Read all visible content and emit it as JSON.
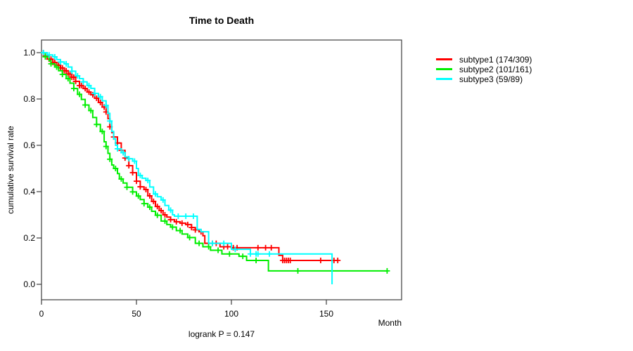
{
  "title": "Time to Death",
  "xlabel": "Month",
  "ylabel": "cumulative survival rate",
  "footer": "logrank P = 0.147",
  "colors": {
    "subtype1": "#ff0000",
    "subtype2": "#00ee00",
    "subtype3": "#00ffff",
    "axis": "#3c3c3c",
    "text": "#000000"
  },
  "legend": {
    "items": [
      {
        "label": "subtype1 (174/309)",
        "color": "#ff0000"
      },
      {
        "label": "subtype2 (101/161)",
        "color": "#00ee00"
      },
      {
        "label": "subtype3 (59/89)",
        "color": "#00ffff"
      }
    ]
  },
  "chart_data": {
    "type": "line",
    "variant": "kaplan-meier-step",
    "title": "Time to Death",
    "xlabel": "Month",
    "ylabel": "cumulative survival rate",
    "annotation": "logrank P = 0.147",
    "legend_position": "right-outside",
    "grid": false,
    "xlim": [
      0,
      190
    ],
    "ylim": [
      0,
      1.0
    ],
    "xticks": [
      0,
      50,
      100,
      150
    ],
    "yticks": [
      0.0,
      0.2,
      0.4,
      0.6,
      0.8,
      1.0
    ],
    "series": [
      {
        "name": "subtype1 (174/309)",
        "events": 174,
        "total": 309,
        "color": "#ff0000",
        "end": 156,
        "steps": [
          [
            0,
            1.0
          ],
          [
            2,
            0.985
          ],
          [
            4,
            0.972
          ],
          [
            6,
            0.958
          ],
          [
            8,
            0.946
          ],
          [
            10,
            0.934
          ],
          [
            12,
            0.922
          ],
          [
            14,
            0.908
          ],
          [
            16,
            0.894
          ],
          [
            18,
            0.876
          ],
          [
            20,
            0.858
          ],
          [
            22,
            0.845
          ],
          [
            24,
            0.83
          ],
          [
            26,
            0.818
          ],
          [
            28,
            0.803
          ],
          [
            30,
            0.785
          ],
          [
            32,
            0.765
          ],
          [
            34,
            0.744
          ],
          [
            35,
            0.715
          ],
          [
            36,
            0.68
          ],
          [
            37,
            0.655
          ],
          [
            38,
            0.636
          ],
          [
            40,
            0.61
          ],
          [
            42,
            0.578
          ],
          [
            44,
            0.545
          ],
          [
            46,
            0.512
          ],
          [
            48,
            0.482
          ],
          [
            50,
            0.445
          ],
          [
            52,
            0.421
          ],
          [
            54,
            0.409
          ],
          [
            56,
            0.382
          ],
          [
            58,
            0.358
          ],
          [
            60,
            0.336
          ],
          [
            62,
            0.318
          ],
          [
            64,
            0.3
          ],
          [
            66,
            0.29
          ],
          [
            68,
            0.279
          ],
          [
            70,
            0.27
          ],
          [
            73,
            0.264
          ],
          [
            76,
            0.258
          ],
          [
            79,
            0.245
          ],
          [
            81,
            0.235
          ],
          [
            83,
            0.227
          ],
          [
            85,
            0.21
          ],
          [
            86,
            0.177
          ],
          [
            94,
            0.162
          ],
          [
            100,
            0.158
          ],
          [
            125,
            0.125
          ],
          [
            127,
            0.103
          ]
        ],
        "censor_times": [
          1,
          2,
          3,
          4,
          5,
          6,
          7,
          8,
          9,
          10,
          11,
          12,
          13,
          14,
          15,
          16,
          17,
          18,
          20,
          21,
          23,
          25,
          27,
          29,
          31,
          33,
          34,
          36,
          38,
          40,
          42,
          44,
          46,
          48,
          50,
          52,
          55,
          57,
          59,
          61,
          63,
          65,
          68,
          71,
          74,
          77,
          79,
          81,
          84,
          88,
          90,
          92,
          96,
          98,
          101,
          103,
          114,
          118,
          121,
          127,
          128,
          129,
          130,
          131,
          147,
          154,
          156
        ]
      },
      {
        "name": "subtype2 (101/161)",
        "events": 101,
        "total": 161,
        "color": "#00ee00",
        "end": 182,
        "steps": [
          [
            0,
            1.0
          ],
          [
            2,
            0.982
          ],
          [
            4,
            0.965
          ],
          [
            5,
            0.952
          ],
          [
            7,
            0.938
          ],
          [
            9,
            0.922
          ],
          [
            11,
            0.906
          ],
          [
            13,
            0.888
          ],
          [
            15,
            0.868
          ],
          [
            17,
            0.845
          ],
          [
            19,
            0.82
          ],
          [
            21,
            0.798
          ],
          [
            23,
            0.774
          ],
          [
            25,
            0.75
          ],
          [
            27,
            0.72
          ],
          [
            29,
            0.69
          ],
          [
            31,
            0.66
          ],
          [
            33,
            0.615
          ],
          [
            34,
            0.595
          ],
          [
            35,
            0.565
          ],
          [
            36,
            0.54
          ],
          [
            37,
            0.515
          ],
          [
            38,
            0.5
          ],
          [
            40,
            0.478
          ],
          [
            41,
            0.455
          ],
          [
            43,
            0.437
          ],
          [
            45,
            0.419
          ],
          [
            48,
            0.399
          ],
          [
            50,
            0.381
          ],
          [
            52,
            0.366
          ],
          [
            54,
            0.348
          ],
          [
            56,
            0.333
          ],
          [
            58,
            0.315
          ],
          [
            60,
            0.298
          ],
          [
            63,
            0.273
          ],
          [
            66,
            0.258
          ],
          [
            68,
            0.247
          ],
          [
            71,
            0.232
          ],
          [
            74,
            0.217
          ],
          [
            77,
            0.202
          ],
          [
            81,
            0.177
          ],
          [
            85,
            0.162
          ],
          [
            89,
            0.147
          ],
          [
            95,
            0.131
          ],
          [
            104,
            0.121
          ],
          [
            108,
            0.103
          ],
          [
            119.5,
            0.058
          ]
        ],
        "censor_times": [
          2,
          5,
          8,
          11,
          14,
          17,
          20,
          23,
          26,
          29,
          32,
          34,
          36,
          39,
          42,
          45,
          48,
          51,
          54,
          57,
          61,
          65,
          69,
          73,
          78,
          83,
          88,
          93,
          99,
          106,
          113,
          135,
          182
        ]
      },
      {
        "name": "subtype3 (59/89)",
        "events": 59,
        "total": 89,
        "color": "#00ffff",
        "end": 153,
        "steps": [
          [
            0,
            1.0
          ],
          [
            3,
            0.99
          ],
          [
            6,
            0.982
          ],
          [
            8,
            0.97
          ],
          [
            10,
            0.96
          ],
          [
            12,
            0.952
          ],
          [
            14,
            0.938
          ],
          [
            16,
            0.92
          ],
          [
            18,
            0.9
          ],
          [
            20,
            0.888
          ],
          [
            22,
            0.874
          ],
          [
            24,
            0.858
          ],
          [
            26,
            0.846
          ],
          [
            28,
            0.824
          ],
          [
            30,
            0.81
          ],
          [
            32,
            0.792
          ],
          [
            34,
            0.772
          ],
          [
            35,
            0.738
          ],
          [
            36,
            0.705
          ],
          [
            37,
            0.66
          ],
          [
            38,
            0.628
          ],
          [
            39,
            0.6
          ],
          [
            40,
            0.585
          ],
          [
            42,
            0.568
          ],
          [
            44,
            0.55
          ],
          [
            46,
            0.542
          ],
          [
            48,
            0.532
          ],
          [
            50,
            0.5
          ],
          [
            51,
            0.47
          ],
          [
            53,
            0.458
          ],
          [
            55,
            0.448
          ],
          [
            57,
            0.42
          ],
          [
            59,
            0.39
          ],
          [
            61,
            0.378
          ],
          [
            63,
            0.364
          ],
          [
            65,
            0.34
          ],
          [
            67,
            0.32
          ],
          [
            69,
            0.3
          ],
          [
            70,
            0.294
          ],
          [
            82,
            0.237
          ],
          [
            84,
            0.227
          ],
          [
            88,
            0.177
          ],
          [
            100,
            0.151
          ],
          [
            110,
            0.131
          ],
          [
            153,
            0
          ]
        ],
        "censor_times": [
          1,
          4,
          7,
          10,
          13,
          16,
          19,
          22,
          25,
          28,
          31,
          34,
          36,
          40,
          43,
          46,
          49,
          52,
          56,
          60,
          64,
          68,
          72,
          76,
          80,
          90,
          96,
          102,
          110,
          113,
          114,
          120
        ]
      }
    ]
  }
}
